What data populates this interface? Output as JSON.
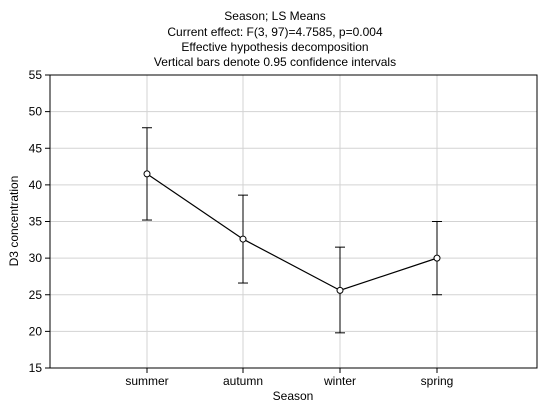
{
  "chart_data": {
    "type": "line",
    "title_lines": [
      "Season; LS Means",
      "Current effect: F(3, 97)=4.7585, p=0.004",
      "Effective hypothesis decomposition",
      "Vertical bars denote 0.95 confidence intervals"
    ],
    "xlabel": "Season",
    "ylabel": "D3 concentration",
    "categories": [
      "summer",
      "autumn",
      "winter",
      "spring"
    ],
    "series": [
      {
        "values": [
          41.5,
          32.6,
          25.6,
          30.0
        ],
        "ci_low": [
          35.2,
          26.6,
          19.8,
          25.0
        ],
        "ci_high": [
          47.8,
          38.6,
          31.5,
          35.0
        ]
      }
    ],
    "ylim": [
      15,
      55
    ],
    "yticks": [
      "15",
      "20",
      "25",
      "30",
      "35",
      "40",
      "45",
      "50",
      "55"
    ],
    "grid": true,
    "line_color": "#000000",
    "grid_color": "#d3d3d3",
    "border_color": "#000000"
  }
}
